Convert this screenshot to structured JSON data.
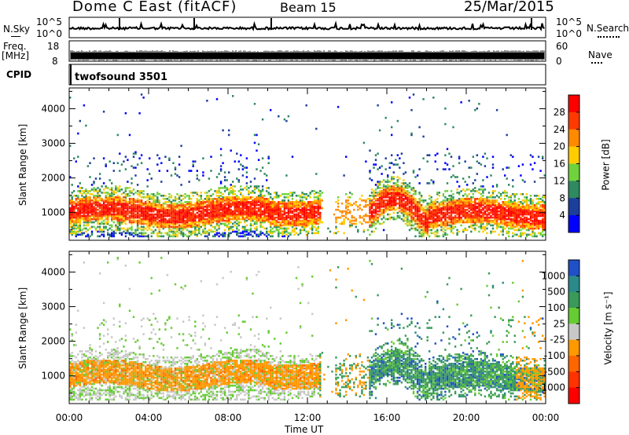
{
  "header": {
    "title": "Dome C East (fitACF)",
    "beam": "Beam 15",
    "date": "25/Mar/2015"
  },
  "params_panel": {
    "nsky_label": "N.Sky",
    "nsky_ticks": [
      "10^5",
      "10^0"
    ],
    "nsearch_label": "N.Search",
    "nsearch_ticks": [
      "10^5",
      "10^0"
    ],
    "freq_label": "Freq.",
    "freq_unit": "[MHz]",
    "freq_ticks": [
      "18",
      "8"
    ],
    "nave_label": "Nave",
    "nave_ticks": [
      "60",
      "0"
    ],
    "cpid_label": "CPID",
    "cpid_value": "twofsound 3501"
  },
  "chart_data": [
    {
      "type": "heatmap",
      "name": "power",
      "ylabel": "Slant Range [km]",
      "ylim": [
        200,
        4600
      ],
      "yticks": [
        "1000",
        "2000",
        "3000",
        "4000"
      ],
      "colorbar_label": "Power [dB]",
      "colorbar_ticks": [
        "4",
        "8",
        "12",
        "16",
        "20",
        "24",
        "28"
      ],
      "colorbar_colors": [
        "#0000ff",
        "#1c3f9c",
        "#2f8a60",
        "#6fd23c",
        "#ffcc00",
        "#ff8a00",
        "#ff3a00",
        "#ff0000"
      ],
      "band_ranges_km": [
        [
          500,
          1600
        ],
        [
          2000,
          2600
        ]
      ]
    },
    {
      "type": "heatmap",
      "name": "velocity",
      "ylabel": "Slant Range [km]",
      "ylim": [
        200,
        4600
      ],
      "yticks": [
        "1000",
        "2000",
        "3000",
        "4000"
      ],
      "colorbar_label": "Velocity [m s⁻¹]",
      "colorbar_ticks": [
        "1000",
        "500",
        "100",
        "25",
        "-25",
        "-100",
        "-500",
        "-1000"
      ],
      "colorbar_colors": [
        "#2050c8",
        "#2a8a8a",
        "#3a9a5a",
        "#66cc33",
        "#c8c8c8",
        "#ff9900",
        "#ff6600",
        "#ff3300",
        "#ff0000"
      ]
    }
  ],
  "xaxis": {
    "label": "Time UT",
    "ticks": [
      "00:00",
      "04:00",
      "08:00",
      "12:00",
      "16:00",
      "20:00",
      "00:00"
    ]
  }
}
